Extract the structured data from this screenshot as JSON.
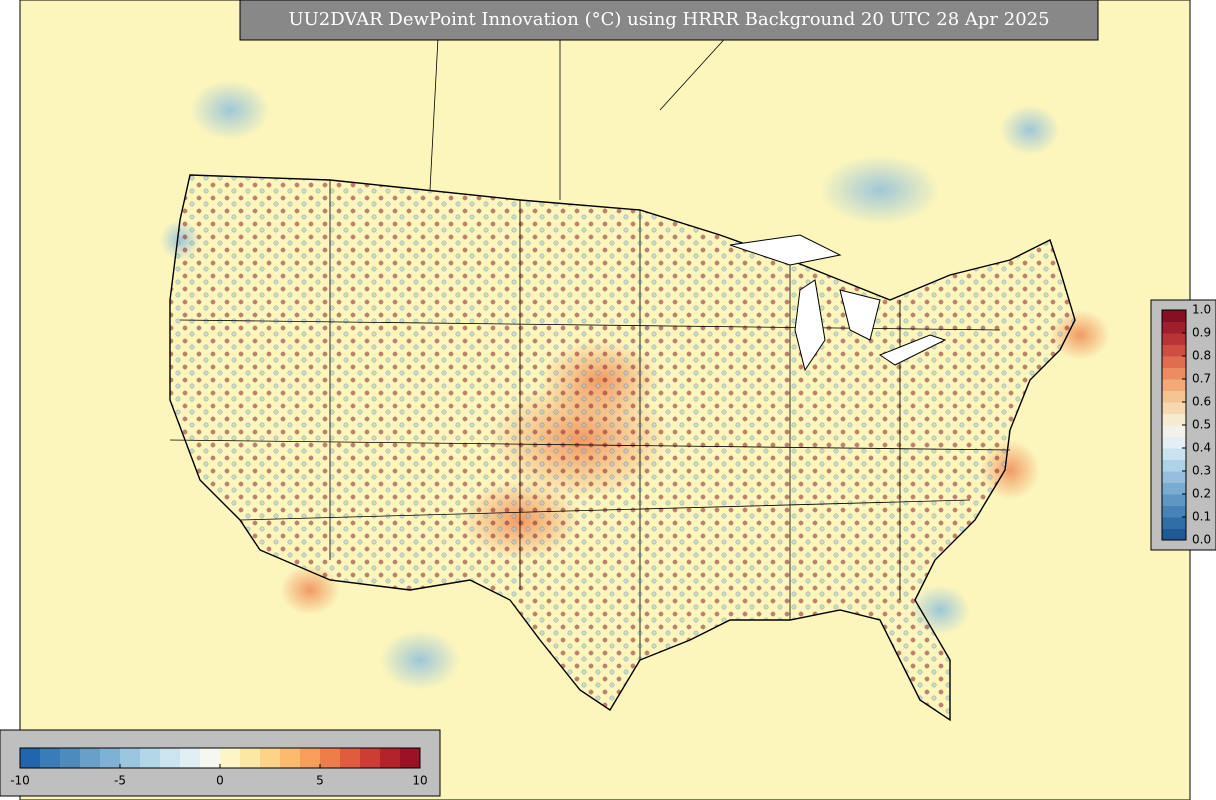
{
  "title": "UU2DVAR DewPoint Innovation (°C) using HRRR Background 20 UTC 28 Apr 2025",
  "innovation_colorbar": {
    "range": [
      -10,
      10
    ],
    "ticks": [
      -10,
      -5,
      0,
      5,
      10
    ],
    "colors": [
      "#2166ac",
      "#3a7cb5",
      "#4e8bbd",
      "#6a9fc8",
      "#7fb1d4",
      "#9ac6e0",
      "#b3d6e8",
      "#cbe4ef",
      "#e1eef4",
      "#f5f8f0",
      "#fdf5c8",
      "#fde7a4",
      "#fdd487",
      "#fbbb6d",
      "#f79e59",
      "#ef7d4a",
      "#e05c3e",
      "#cc3d33",
      "#b3232b",
      "#9a1024"
    ]
  },
  "probability_colorbar": {
    "range": [
      0,
      1
    ],
    "ticks": [
      {
        "value": 0,
        "label": "0.0"
      },
      0.1,
      0.2,
      0.3,
      0.4,
      0.5,
      0.6,
      0.7,
      0.8,
      0.9,
      {
        "value": 1,
        "label": "1.0"
      }
    ],
    "colors": [
      "#1f5a96",
      "#2f6ea6",
      "#4683b6",
      "#5f97c4",
      "#7aabd1",
      "#95bfdd",
      "#b0d2e7",
      "#cbe3ef",
      "#e3eff3",
      "#f3f2ea",
      "#f6ead0",
      "#f6d9b0",
      "#f5c493",
      "#f2aa78",
      "#ec8c62",
      "#e06d50",
      "#cf4e42",
      "#b93437",
      "#a11e2d",
      "#851024"
    ]
  }
}
